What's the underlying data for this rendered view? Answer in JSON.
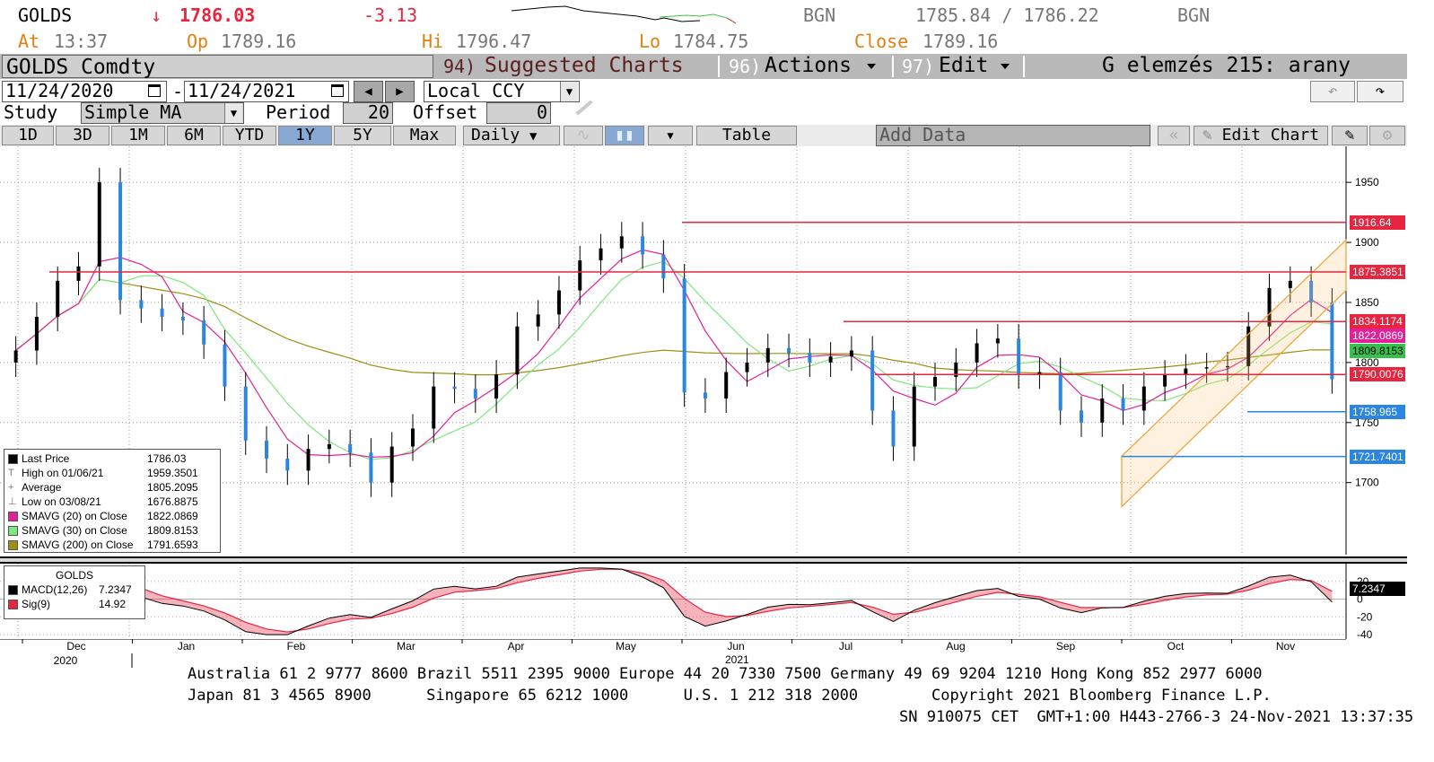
{
  "quote": {
    "ticker": "GOLDS",
    "arrow": "↓",
    "last": "1786.03",
    "change": "-3.13",
    "source1": "BGN",
    "bid_ask": "1785.84 / 1786.22",
    "source2": "BGN",
    "at_label": "At",
    "at_time": "13:37",
    "op_label": "Op",
    "op_value": "1789.16",
    "hi_label": "Hi",
    "hi_value": "1796.47",
    "lo_label": "Lo",
    "lo_value": "1784.75",
    "close_label": "Close",
    "close_value": "1789.16"
  },
  "menu": {
    "security": "GOLDS Comdty",
    "suggested_num": "94)",
    "suggested": "Suggested Charts",
    "actions_num": "96)",
    "actions": "Actions",
    "edit_num": "97)",
    "edit": "Edit",
    "page_title": "G elemzés 215: arany"
  },
  "controls": {
    "date_from": "11/24/2020",
    "date_sep": "-",
    "date_to": "11/24/2021",
    "currency": "Local CCY",
    "study_label": "Study",
    "study_value": "Simple MA",
    "period_label": "Period",
    "period_value": "20",
    "offset_label": "Offset",
    "offset_value": "0"
  },
  "toolbar": {
    "ranges": [
      "1D",
      "3D",
      "1M",
      "6M",
      "YTD",
      "1Y",
      "5Y",
      "Max"
    ],
    "selected_range": "1Y",
    "frequency": "Daily",
    "table": "Table",
    "add_data": "Add Data",
    "edit_chart": "Edit Chart"
  },
  "chart_data": [
    {
      "type": "candlestick",
      "title": "",
      "y_ticks": [
        "1950",
        "1900",
        "1850",
        "1800",
        "1750",
        "1700"
      ],
      "ylim": [
        1640,
        1980
      ],
      "grid": true,
      "x_tick_labels": [
        "Dec",
        "Jan",
        "Feb",
        "Mar",
        "Apr",
        "May",
        "Jun",
        "Jul",
        "Aug",
        "Sep",
        "Oct",
        "Nov"
      ],
      "year_labels": [
        "2020",
        "2021"
      ],
      "close_series_weekly": [
        1810,
        1838,
        1868,
        1880,
        1950,
        1852,
        1845,
        1838,
        1835,
        1815,
        1780,
        1735,
        1720,
        1710,
        1728,
        1732,
        1725,
        1700,
        1730,
        1745,
        1780,
        1778,
        1770,
        1790,
        1830,
        1840,
        1860,
        1885,
        1895,
        1905,
        1890,
        1870,
        1775,
        1770,
        1792,
        1800,
        1812,
        1808,
        1800,
        1805,
        1810,
        1760,
        1730,
        1780,
        1788,
        1800,
        1816,
        1820,
        1790,
        1792,
        1760,
        1750,
        1770,
        1760,
        1780,
        1790,
        1795,
        1796,
        1797,
        1830,
        1862,
        1868,
        1850,
        1786
      ],
      "horizontal_levels": [
        1916.64,
        1875.3851,
        1834.1174,
        1790.0076,
        1758.965,
        1721.7401
      ],
      "axis_tags": [
        {
          "text": "1916.64",
          "color": "#e8253e"
        },
        {
          "text": "1875.3851",
          "color": "#e8253e"
        },
        {
          "text": "1834.1174",
          "color": "#e8253e"
        },
        {
          "text": "1822.0869",
          "color": "#e0219a"
        },
        {
          "text": "1809.8153",
          "color": "#34c24a"
        },
        {
          "text": "1790.0076",
          "color": "#e8253e"
        },
        {
          "text": "1758.965",
          "color": "#2a86e0"
        },
        {
          "text": "1721.7401",
          "color": "#2a86e0"
        }
      ],
      "legend": [
        {
          "label": "Last Price",
          "value": "1786.03",
          "color": "#000000"
        },
        {
          "label": "High on 01/06/21",
          "value": "1959.3501",
          "color": null,
          "glyph": "T"
        },
        {
          "label": "Average",
          "value": "1805.2095",
          "color": null,
          "glyph": "+"
        },
        {
          "label": "Low on 03/08/21",
          "value": "1676.8875",
          "color": null,
          "glyph": "⊥"
        },
        {
          "label": "SMAVG (20)  on Close",
          "value": "1822.0869",
          "color": "#e0219a"
        },
        {
          "label": "SMAVG (30)  on Close",
          "value": "1809.8153",
          "color": "#7ee87e"
        },
        {
          "label": "SMAVG (200)  on Close",
          "value": "1791.6593",
          "color": "#9a9014"
        }
      ]
    },
    {
      "type": "line",
      "title": "GOLDS",
      "series": [
        {
          "name": "MACD(12,26)",
          "value": "7.2347",
          "color": "#000000"
        },
        {
          "name": "Sig(9)",
          "value": "14.92",
          "color": "#e8253e"
        }
      ],
      "y_ticks": [
        "20",
        "0",
        "-20",
        "-40"
      ],
      "ylim": [
        -45,
        40
      ],
      "axis_tag": "7.2347"
    }
  ],
  "footer": {
    "line1": "Australia 61 2 9777 8600 Brazil 5511 2395 9000 Europe 44 20 7330 7500 Germany 49 69 9204 1210 Hong Kong 852 2977 6000",
    "line2": "Japan 81 3 4565 8900      Singapore 65 6212 1000      U.S. 1 212 318 2000        Copyright 2021 Bloomberg Finance L.P.",
    "line3": "SN 910075 CET  GMT+1:00 H443-2766-3 24-Nov-2021 13:37:35",
    "year_2021": "2021"
  }
}
